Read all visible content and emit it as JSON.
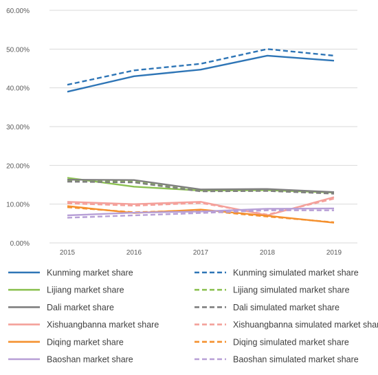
{
  "chart_data": {
    "type": "line",
    "x": [
      "2015",
      "2016",
      "2017",
      "2018",
      "2019"
    ],
    "ylim": [
      0,
      60
    ],
    "ytick_labels": [
      "0.00%",
      "10.00%",
      "20.00%",
      "30.00%",
      "40.00%",
      "50.00%",
      "60.00%"
    ],
    "grid": true,
    "legend_placement": "bottom",
    "series": [
      {
        "name": "Kunming market share",
        "color": "#2e75b6",
        "dash": false,
        "values": [
          39.0,
          43.0,
          44.7,
          48.3,
          47.0
        ]
      },
      {
        "name": "Kunming simulated market share",
        "color": "#2e75b6",
        "dash": true,
        "values": [
          40.8,
          44.5,
          46.2,
          50.0,
          48.3
        ]
      },
      {
        "name": "Lijiang market share",
        "color": "#8cc152",
        "dash": false,
        "values": [
          16.8,
          14.5,
          13.5,
          13.6,
          13.0
        ]
      },
      {
        "name": "Lijiang simulated market share",
        "color": "#8cc152",
        "dash": true,
        "values": [
          16.2,
          15.8,
          13.4,
          13.5,
          12.8
        ]
      },
      {
        "name": "Dali market share",
        "color": "#7f7f7f",
        "dash": false,
        "values": [
          16.3,
          16.2,
          13.8,
          13.9,
          13.1
        ]
      },
      {
        "name": "Dali simulated market share",
        "color": "#7f7f7f",
        "dash": true,
        "values": [
          15.8,
          15.6,
          13.3,
          13.4,
          12.7
        ]
      },
      {
        "name": "Xishuangbanna market share",
        "color": "#f4a09a",
        "dash": false,
        "values": [
          10.6,
          10.0,
          10.6,
          7.1,
          11.8
        ]
      },
      {
        "name": "Xishuangbanna simulated market share",
        "color": "#f4a09a",
        "dash": true,
        "values": [
          10.2,
          9.6,
          10.3,
          7.3,
          11.4
        ]
      },
      {
        "name": "Diqing market share",
        "color": "#f4902e",
        "dash": false,
        "values": [
          9.5,
          7.7,
          8.6,
          7.0,
          5.2
        ]
      },
      {
        "name": "Diqing simulated market share",
        "color": "#f4902e",
        "dash": true,
        "values": [
          9.2,
          7.9,
          8.4,
          6.8,
          5.3
        ]
      },
      {
        "name": "Baoshan market share",
        "color": "#b79fd6",
        "dash": false,
        "values": [
          7.1,
          7.8,
          8.1,
          8.8,
          8.9
        ]
      },
      {
        "name": "Baoshan simulated market share",
        "color": "#b79fd6",
        "dash": true,
        "values": [
          6.5,
          7.1,
          7.7,
          8.4,
          8.4
        ]
      }
    ]
  }
}
